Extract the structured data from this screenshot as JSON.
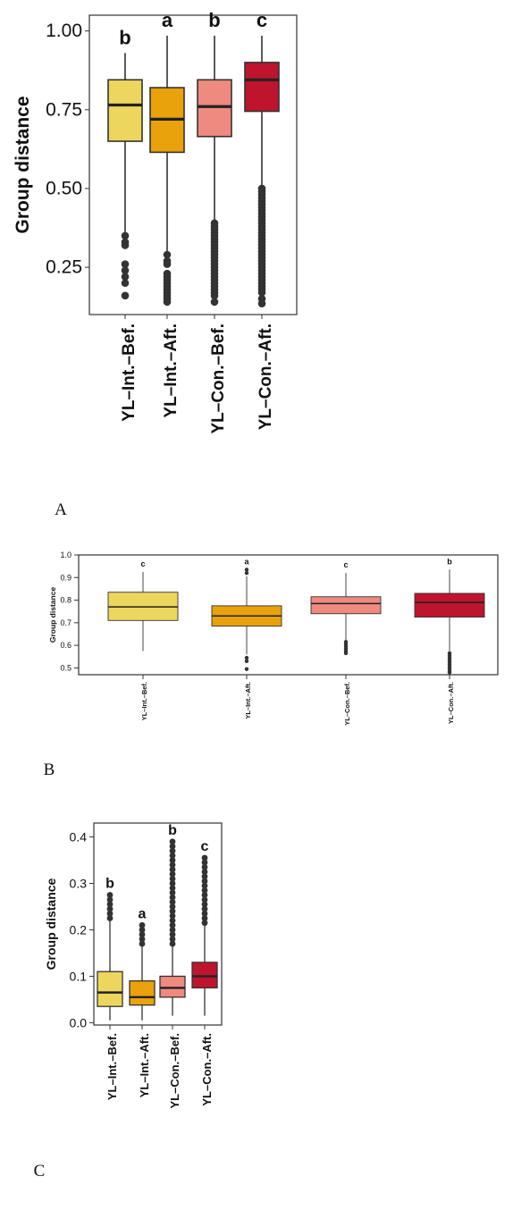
{
  "panels": [
    {
      "label": "A"
    },
    {
      "label": "B"
    },
    {
      "label": "C"
    }
  ],
  "chart_data": [
    {
      "type": "box",
      "title": "",
      "ylabel": "Group distance",
      "xlabel": "",
      "ylim": [
        0.1,
        1.05
      ],
      "yticks": [
        "0.25",
        "0.50",
        "0.75",
        "1.00"
      ],
      "categories": [
        "YL–Int.–Bef.",
        "YL–Int.–Aft.",
        "YL–Con.–Bef.",
        "YL–Con.–Aft."
      ],
      "letters": [
        "b",
        "a",
        "b",
        "c"
      ],
      "colors": [
        "#ECD65E",
        "#E9A10C",
        "#EE8A7F",
        "#BE142E"
      ],
      "series": [
        {
          "q1": 0.65,
          "median": 0.765,
          "q3": 0.845,
          "whisker_low": 0.36,
          "whisker_high": 0.93,
          "outliers": [
            0.35,
            0.33,
            0.32,
            0.26,
            0.24,
            0.22,
            0.2,
            0.16
          ]
        },
        {
          "q1": 0.615,
          "median": 0.72,
          "q3": 0.82,
          "whisker_low": 0.3,
          "whisker_high": 0.985,
          "outliers": [
            0.29,
            0.27,
            0.26,
            0.23,
            0.22,
            0.21,
            0.2,
            0.19,
            0.18,
            0.17,
            0.16,
            0.15,
            0.14
          ]
        },
        {
          "q1": 0.665,
          "median": 0.76,
          "q3": 0.845,
          "whisker_low": 0.4,
          "whisker_high": 0.985,
          "outliers": [
            0.39,
            0.38,
            0.37,
            0.36,
            0.35,
            0.34,
            0.33,
            0.32,
            0.31,
            0.3,
            0.29,
            0.28,
            0.27,
            0.26,
            0.25,
            0.24,
            0.23,
            0.22,
            0.21,
            0.2,
            0.19,
            0.18,
            0.17,
            0.16,
            0.14
          ]
        },
        {
          "q1": 0.745,
          "median": 0.845,
          "q3": 0.9,
          "whisker_low": 0.51,
          "whisker_high": 0.985,
          "outliers": [
            0.5,
            0.49,
            0.48,
            0.47,
            0.46,
            0.45,
            0.44,
            0.43,
            0.42,
            0.41,
            0.4,
            0.39,
            0.38,
            0.37,
            0.36,
            0.35,
            0.34,
            0.33,
            0.32,
            0.31,
            0.3,
            0.29,
            0.28,
            0.27,
            0.26,
            0.25,
            0.24,
            0.23,
            0.22,
            0.21,
            0.2,
            0.19,
            0.18,
            0.17,
            0.15,
            0.135
          ]
        }
      ]
    },
    {
      "type": "box",
      "title": "",
      "ylabel": "Group distance",
      "xlabel": "",
      "ylim": [
        0.47,
        1.0
      ],
      "yticks": [
        "0.5",
        "0.6",
        "0.7",
        "0.8",
        "0.9",
        "1.0"
      ],
      "categories": [
        "YL–Int.–Bef.",
        "YL–Int.–Aft.",
        "YL–Con.–Bef.",
        "YL–Con.–Aft."
      ],
      "letters": [
        "c",
        "a",
        "c",
        "b"
      ],
      "colors": [
        "#ECD65E",
        "#E9A10C",
        "#EE8A7F",
        "#BE142E"
      ],
      "series": [
        {
          "q1": 0.71,
          "median": 0.77,
          "q3": 0.835,
          "whisker_low": 0.575,
          "whisker_high": 0.925,
          "outliers": []
        },
        {
          "q1": 0.685,
          "median": 0.73,
          "q3": 0.775,
          "whisker_low": 0.56,
          "whisker_high": 0.905,
          "outliers": [
            0.935,
            0.92,
            0.545,
            0.53,
            0.495
          ]
        },
        {
          "q1": 0.74,
          "median": 0.785,
          "q3": 0.815,
          "whisker_low": 0.62,
          "whisker_high": 0.92,
          "outliers": [
            0.615,
            0.605,
            0.595,
            0.585,
            0.575,
            0.565
          ]
        },
        {
          "q1": 0.725,
          "median": 0.79,
          "q3": 0.83,
          "whisker_low": 0.575,
          "whisker_high": 0.935,
          "outliers": [
            0.565,
            0.555,
            0.545,
            0.535,
            0.525,
            0.515,
            0.505,
            0.495,
            0.485,
            0.48
          ]
        }
      ]
    },
    {
      "type": "box",
      "title": "",
      "ylabel": "Group distance",
      "xlabel": "",
      "ylim": [
        -0.005,
        0.43
      ],
      "yticks": [
        "0.0",
        "0.1",
        "0.2",
        "0.3",
        "0.4"
      ],
      "categories": [
        "YL–Int.–Bef.",
        "YL–Int.–Aft.",
        "YL–Con.–Bef.",
        "YL–Con.–Aft."
      ],
      "letters": [
        "b",
        "a",
        "b",
        "c"
      ],
      "colors": [
        "#ECD65E",
        "#E9A10C",
        "#EE8A7F",
        "#BE142E"
      ],
      "series": [
        {
          "q1": 0.035,
          "median": 0.065,
          "q3": 0.11,
          "whisker_low": 0.005,
          "whisker_high": 0.22,
          "outliers": [
            0.225,
            0.235,
            0.245,
            0.255,
            0.265,
            0.275
          ]
        },
        {
          "q1": 0.038,
          "median": 0.055,
          "q3": 0.09,
          "whisker_low": 0.005,
          "whisker_high": 0.165,
          "outliers": [
            0.17,
            0.18,
            0.19,
            0.2,
            0.21
          ]
        },
        {
          "q1": 0.055,
          "median": 0.075,
          "q3": 0.1,
          "whisker_low": 0.015,
          "whisker_high": 0.165,
          "outliers": [
            0.17,
            0.18,
            0.19,
            0.2,
            0.21,
            0.22,
            0.23,
            0.24,
            0.25,
            0.26,
            0.27,
            0.28,
            0.29,
            0.3,
            0.31,
            0.32,
            0.33,
            0.34,
            0.35,
            0.36,
            0.37,
            0.38,
            0.39
          ]
        },
        {
          "q1": 0.075,
          "median": 0.1,
          "q3": 0.13,
          "whisker_low": 0.015,
          "whisker_high": 0.21,
          "outliers": [
            0.215,
            0.225,
            0.235,
            0.245,
            0.255,
            0.265,
            0.275,
            0.285,
            0.295,
            0.305,
            0.315,
            0.325,
            0.335,
            0.345,
            0.355
          ]
        }
      ]
    }
  ]
}
